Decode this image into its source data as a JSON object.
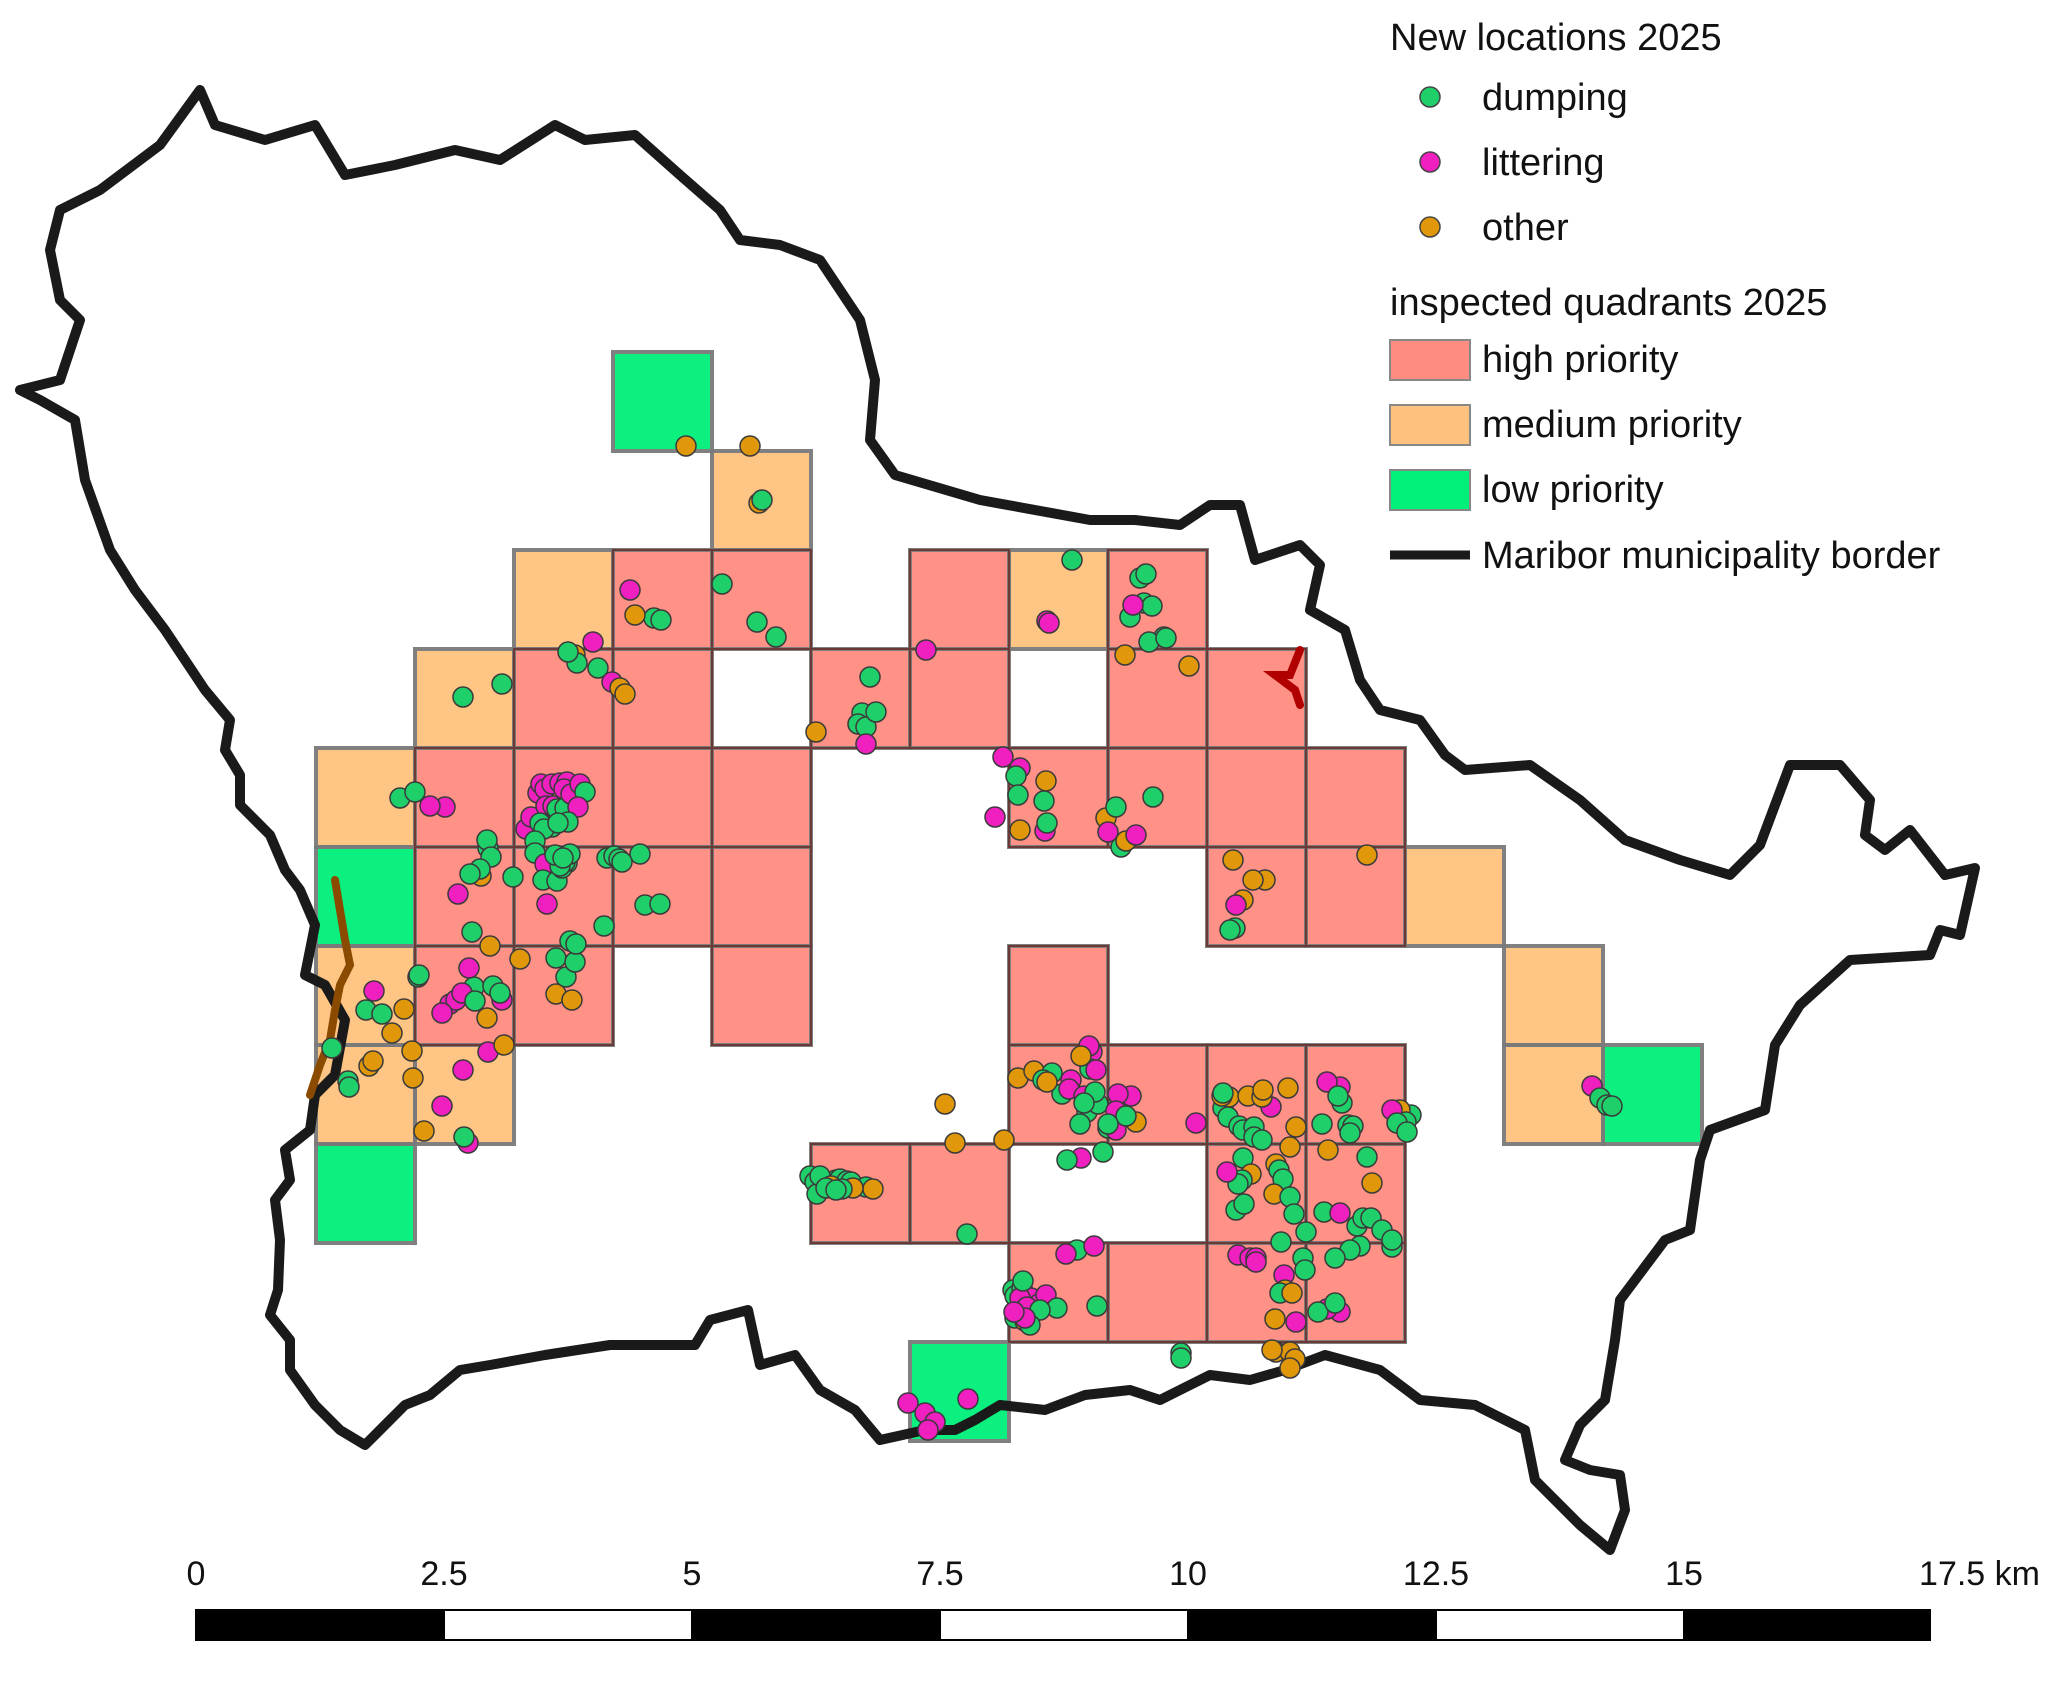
{
  "legend": {
    "points_title": "New locations 2025",
    "points": [
      {
        "label": "dumping",
        "color": "#1fcf6a"
      },
      {
        "label": "littering",
        "color": "#f020c0"
      },
      {
        "label": "other",
        "color": "#e0980a"
      }
    ],
    "quadrants_title": "inspected quadrants 2025",
    "quadrants": [
      {
        "label": "high priority",
        "color": "#ff8c80"
      },
      {
        "label": "medium priority",
        "color": "#ffc27e"
      },
      {
        "label": "low priority",
        "color": "#00f07a"
      }
    ],
    "border_label": "Maribor municipality border",
    "border_color": "#1a1a1a"
  },
  "scale_bar": {
    "labels": [
      "0",
      "2.5",
      "5",
      "7.5",
      "10",
      "12.5",
      "15",
      "17.5 km"
    ]
  }
}
